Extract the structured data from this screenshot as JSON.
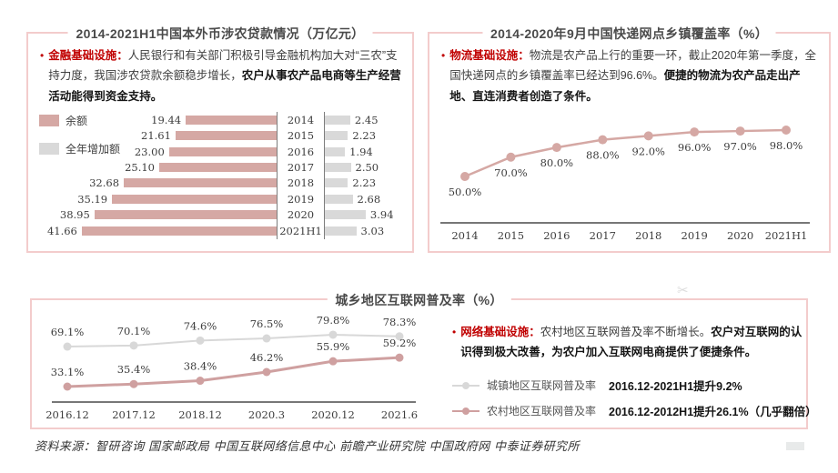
{
  "colors": {
    "accent_red": "#c00000",
    "bar_pink": "#d5a8a4",
    "bar_gray": "#d9d9d9",
    "line_pink": "#d5a8a4",
    "rural_pink": "#cfa0a0",
    "urban_gray": "#d8d8d8",
    "panel_border": "#f3cccc",
    "axis": "#4a4a4a"
  },
  "icons": {
    "bullet": "•",
    "scissors": "✂"
  },
  "chart_data": [
    {
      "type": "bar",
      "variant": "tornado",
      "title": "2014-2021H1中国本外币涉农贷款情况（万亿元）",
      "categories": [
        "2014",
        "2015",
        "2016",
        "2017",
        "2018",
        "2019",
        "2020",
        "2021H1"
      ],
      "series": [
        {
          "name": "余额",
          "color": "#d5a8a4",
          "side": "left",
          "values": [
            19.44,
            21.61,
            23.0,
            25.1,
            32.68,
            35.19,
            38.95,
            41.66
          ]
        },
        {
          "name": "全年增加额",
          "color": "#d9d9d9",
          "side": "right",
          "values": [
            2.45,
            2.23,
            1.94,
            2.5,
            2.23,
            2.68,
            3.94,
            3.03
          ]
        }
      ],
      "unit": "万亿元",
      "legend_position": "left",
      "grid": false
    },
    {
      "type": "line",
      "title": "2014-2020年9月中国快递网点乡镇覆盖率（%）",
      "categories": [
        "2014",
        "2015",
        "2016",
        "2017",
        "2018",
        "2019",
        "2020",
        "2021H1"
      ],
      "series": [
        {
          "name": "快递网点乡镇覆盖率",
          "color": "#d5a8a4",
          "values": [
            50.0,
            70.0,
            80.0,
            88.0,
            92.0,
            96.0,
            97.0,
            98.0
          ]
        }
      ],
      "data_labels": [
        "50.0%",
        "70.0%",
        "80.0%",
        "88.0%",
        "92.0%",
        "96.0%",
        "97.0%",
        "98.0%"
      ],
      "ylim": [
        45,
        105
      ],
      "grid": false,
      "unit": "%"
    },
    {
      "type": "line",
      "title": "城乡地区互联网普及率（%）",
      "categories": [
        "2016.12",
        "2017.12",
        "2018.12",
        "2020.3",
        "2020.12",
        "2021.6"
      ],
      "series": [
        {
          "name": "城镇地区互联网普及率",
          "color": "#d8d8d8",
          "values": [
            69.1,
            70.1,
            74.6,
            76.5,
            79.8,
            78.3
          ]
        },
        {
          "name": "农村地区互联网普及率",
          "color": "#cfa0a0",
          "values": [
            33.1,
            35.4,
            38.4,
            46.2,
            55.9,
            59.2
          ]
        }
      ],
      "ylim": [
        28,
        88
      ],
      "grid": false,
      "legend_position": "right",
      "unit": "%"
    }
  ],
  "panels": {
    "loans": {
      "title": "2014-2021H1中国本外币涉农贷款情况（万亿元）",
      "bullet_label": "金融基础设施：",
      "bullet_text": "人民银行和有关部门积极引导金融机构加大对“三农”支持力度，我国涉农贷款余额稳步增长，",
      "bullet_bold": "农户从事农产品电商等生产经营活动能得到资金支持。",
      "legend": [
        {
          "label": "余额"
        },
        {
          "label": "全年增加额"
        }
      ]
    },
    "express": {
      "title": "2014-2020年9月中国快递网点乡镇覆盖率（%）",
      "bullet_label": "物流基础设施：",
      "bullet_text": "物流是农产品上行的重要一环，截止2020年第一季度，全国快递网点的乡镇覆盖率已经达到96.6%。",
      "bullet_bold": "便捷的物流为农产品走出产地、直连消费者创造了条件。"
    },
    "internet": {
      "title": "城乡地区互联网普及率（%）",
      "bullet_label": "网络基础设施：",
      "bullet_text": "农村地区互联网普及率不断增长。",
      "bullet_bold": "农户对互联网的认识得到极大改善，为农户加入互联网电商提供了便捷条件。",
      "legend": [
        {
          "label": "城镇地区互联网普及率",
          "note": "2016.12-2021H1提升9.2%",
          "note_style": "dark"
        },
        {
          "label": "农村地区互联网普及率",
          "note": "2016.12-2012H1提升26.1%（几乎翻倍）",
          "note_style": "red"
        }
      ]
    }
  },
  "footer": {
    "source": "资料来源：智研咨询 国家邮政局 中国互联网络信息中心 前瞻产业研究院 中国政府网 中泰证券研究所"
  }
}
